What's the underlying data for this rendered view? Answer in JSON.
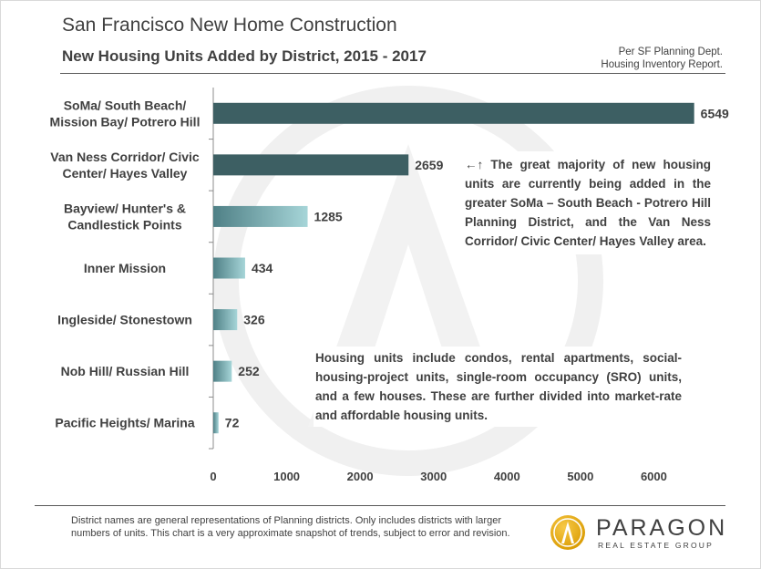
{
  "header": {
    "title": "San Francisco New Home Construction",
    "subtitle": "New Housing Units Added by District, 2015 - 2017",
    "source_line1": "Per SF Planning Dept.",
    "source_line2": "Housing Inventory Report."
  },
  "chart_data": {
    "type": "bar",
    "orientation": "horizontal",
    "title": "New Housing Units Added by District, 2015 - 2017",
    "categories": [
      "SoMa/ South Beach/|Mission Bay/ Potrero Hill",
      "Van Ness Corridor/ Civic|Center/ Hayes Valley",
      "Bayview/ Hunter's &|Candlestick Points",
      "Inner Mission",
      "Ingleside/ Stonestown",
      "Nob Hill/ Russian Hill",
      "Pacific Heights/ Marina"
    ],
    "values": [
      6549,
      2659,
      1285,
      434,
      326,
      252,
      72
    ],
    "xlim": [
      0,
      7000
    ],
    "xticks": [
      0,
      1000,
      2000,
      3000,
      4000,
      5000,
      6000
    ],
    "xlabel": "",
    "ylabel": "",
    "grid": false,
    "colors": {
      "dark_bar": "#3d5f63",
      "gradient_dark": "#4f8086",
      "gradient_light": "#a6d5d8",
      "axis": "#8c8c8c"
    }
  },
  "notes": {
    "note1": "←↑ The great majority of new housing units are currently being added in the greater SoMa – South Beach - Potrero Hill Planning District, and the Van Ness Corridor/ Civic Center/ Hayes Valley area.",
    "note2": "Housing units include condos, rental apartments, social-housing-project units, single-room occupancy (SRO) units, and a few houses. These are further divided into market-rate and affordable housing units."
  },
  "footer": {
    "footnote_line1": "District names are general representations of Planning districts. Only includes districts with larger",
    "footnote_line2": "numbers of units. This chart is a very approximate snapshot of trends, subject to error and revision.",
    "brand_name": "PARAGON",
    "brand_tagline": "REAL ESTATE GROUP",
    "logo_icon": "paragon-logo-icon",
    "watermark_icon": "paragon-watermark-icon"
  }
}
